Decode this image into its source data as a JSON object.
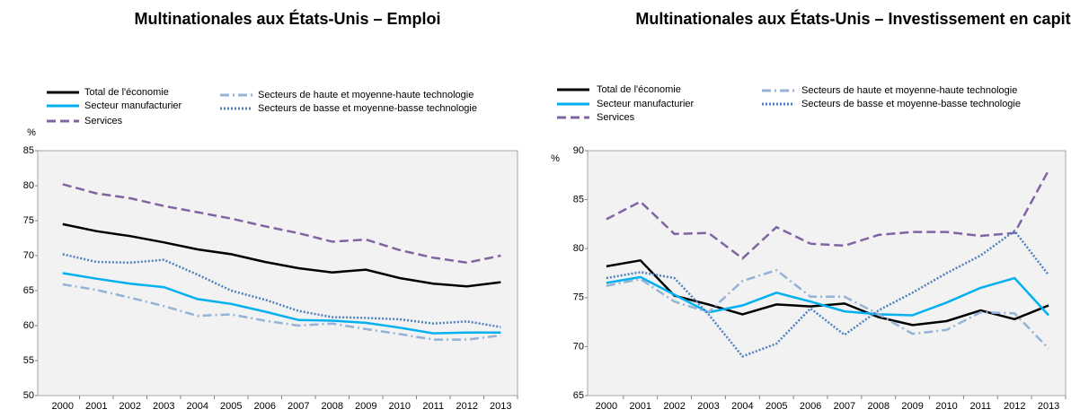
{
  "chart_data": [
    {
      "type": "line",
      "title": "Multinationales aux États-Unis – Emploi",
      "y_label": "%",
      "categories": [
        "2000",
        "2001",
        "2002",
        "2003",
        "2004",
        "2005",
        "2006",
        "2007",
        "2008",
        "2009",
        "2010",
        "2011",
        "2012",
        "2013"
      ],
      "ylim": [
        50,
        85
      ],
      "yticks": [
        50,
        55,
        60,
        65,
        70,
        75,
        80,
        85
      ],
      "grid": false,
      "series": [
        {
          "name": "Total de l'économie",
          "color": "#000000",
          "dash": "solid",
          "values": [
            74.5,
            73.5,
            72.8,
            71.9,
            70.9,
            70.2,
            69.1,
            68.2,
            67.6,
            68.0,
            66.8,
            66.0,
            65.6,
            66.2
          ]
        },
        {
          "name": "Secteur manufacturier",
          "color": "#00b0f0",
          "dash": "solid",
          "values": [
            67.5,
            66.7,
            66.0,
            65.5,
            63.8,
            63.1,
            62.0,
            60.8,
            60.7,
            60.4,
            59.7,
            58.9,
            59.0,
            59.0
          ]
        },
        {
          "name": "Services",
          "color": "#8064a2",
          "dash": "dashed",
          "values": [
            80.2,
            78.9,
            78.2,
            77.1,
            76.2,
            75.3,
            74.2,
            73.2,
            72.0,
            72.3,
            70.8,
            69.7,
            69.0,
            70.0
          ]
        },
        {
          "name": "Secteurs de haute et moyenne-haute technologie",
          "color": "#95b3d7",
          "dash": "dashdot",
          "values": [
            65.9,
            65.1,
            64.0,
            62.8,
            61.4,
            61.6,
            60.7,
            60.0,
            60.3,
            59.5,
            58.8,
            58.0,
            58.0,
            58.6
          ]
        },
        {
          "name": "Secteurs de basse et moyenne-basse technologie",
          "color": "#4f81bd",
          "dash": "dotted",
          "values": [
            70.2,
            69.1,
            69.0,
            69.4,
            67.3,
            65.0,
            63.7,
            62.1,
            61.2,
            61.1,
            60.9,
            60.3,
            60.6,
            59.8
          ]
        }
      ]
    },
    {
      "type": "line",
      "title": "Multinationales aux États-Unis – Investissement en capitaux",
      "y_label": "%",
      "categories": [
        "2000",
        "2001",
        "2002",
        "2003",
        "2004",
        "2005",
        "2006",
        "2007",
        "2008",
        "2009",
        "2010",
        "2011",
        "2012",
        "2013"
      ],
      "ylim": [
        65,
        90
      ],
      "yticks": [
        65,
        70,
        75,
        80,
        85,
        90
      ],
      "grid": false,
      "series": [
        {
          "name": "Total de l'économie",
          "color": "#000000",
          "dash": "solid",
          "values": [
            78.2,
            78.8,
            75.2,
            74.3,
            73.3,
            74.3,
            74.1,
            74.4,
            73.0,
            72.2,
            72.6,
            73.7,
            72.8,
            74.2
          ]
        },
        {
          "name": "Secteur manufacturier",
          "color": "#00b0f0",
          "dash": "solid",
          "values": [
            76.5,
            77.1,
            75.3,
            73.5,
            74.2,
            75.5,
            74.6,
            73.6,
            73.3,
            73.2,
            74.5,
            76.0,
            77.0,
            73.2
          ]
        },
        {
          "name": "Services",
          "color": "#8064a2",
          "dash": "dashed",
          "values": [
            83.0,
            84.8,
            81.5,
            81.6,
            79.0,
            82.2,
            80.5,
            80.3,
            81.4,
            81.7,
            81.7,
            81.3,
            81.6,
            88.0
          ]
        },
        {
          "name": "Secteurs de haute et moyenne-haute technologie",
          "color": "#95b3d7",
          "dash": "dashdot",
          "values": [
            76.2,
            76.9,
            74.6,
            73.5,
            76.7,
            77.8,
            75.1,
            75.1,
            73.3,
            71.3,
            71.7,
            73.5,
            73.4,
            69.8
          ]
        },
        {
          "name": "Secteurs de basse et moyenne-basse technologie",
          "color": "#4f81bd",
          "dash": "dotted",
          "values": [
            77.0,
            77.6,
            77.0,
            73.3,
            69.0,
            70.3,
            73.9,
            71.2,
            73.7,
            75.5,
            77.5,
            79.3,
            81.8,
            77.3
          ]
        }
      ]
    }
  ]
}
